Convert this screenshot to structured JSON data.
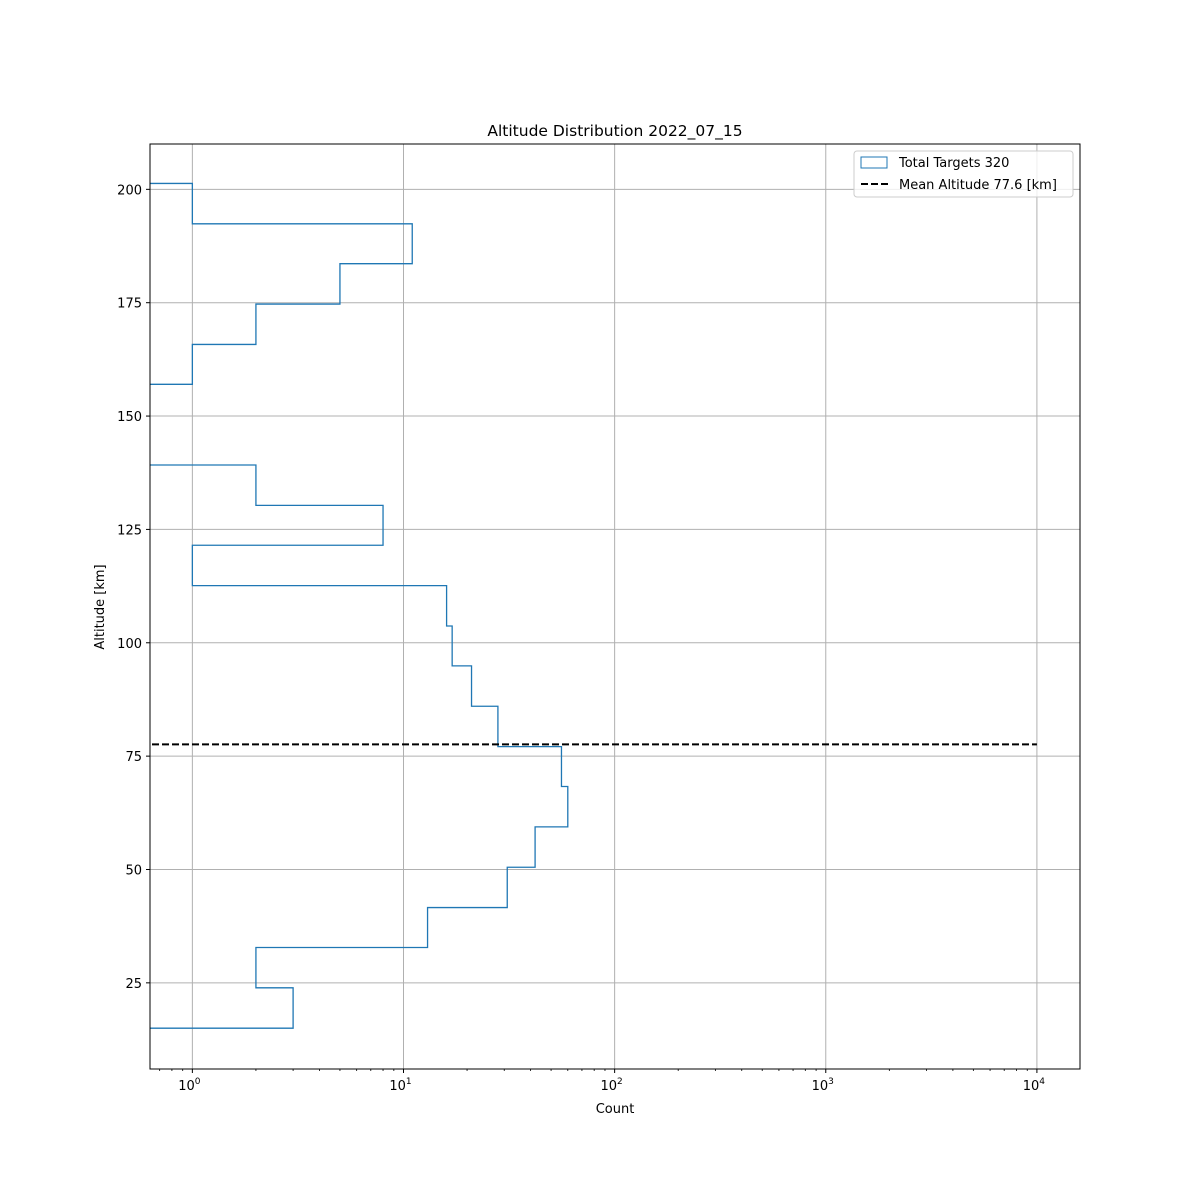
{
  "chart_data": {
    "type": "histogram",
    "orientation": "horizontal",
    "title": "Altitude Distribution 2022_07_15",
    "xlabel": "Count",
    "ylabel": "Altitude [km]",
    "x_scale": "log",
    "xlim": [
      0.63,
      16000
    ],
    "ylim": [
      6,
      210
    ],
    "x_ticks": [
      {
        "value": 1,
        "base": "10",
        "exp": "0"
      },
      {
        "value": 10,
        "base": "10",
        "exp": "1"
      },
      {
        "value": 100,
        "base": "10",
        "exp": "2"
      },
      {
        "value": 1000,
        "base": "10",
        "exp": "3"
      },
      {
        "value": 10000,
        "base": "10",
        "exp": "4"
      }
    ],
    "y_ticks": [
      25,
      50,
      75,
      100,
      125,
      150,
      175,
      200
    ],
    "grid": true,
    "legend_position": "top-right",
    "series": [
      {
        "name": "Total Targets 320",
        "style": "step",
        "color": "#1f77b4",
        "bins": [
          {
            "y_start": 15.0,
            "y_end": 23.9,
            "count": 3
          },
          {
            "y_start": 23.9,
            "y_end": 32.8,
            "count": 2
          },
          {
            "y_start": 32.8,
            "y_end": 41.6,
            "count": 13
          },
          {
            "y_start": 41.6,
            "y_end": 50.5,
            "count": 31
          },
          {
            "y_start": 50.5,
            "y_end": 59.4,
            "count": 42
          },
          {
            "y_start": 59.4,
            "y_end": 68.3,
            "count": 60
          },
          {
            "y_start": 68.3,
            "y_end": 77.1,
            "count": 56
          },
          {
            "y_start": 77.1,
            "y_end": 86.0,
            "count": 28
          },
          {
            "y_start": 86.0,
            "y_end": 94.9,
            "count": 21
          },
          {
            "y_start": 94.9,
            "y_end": 103.7,
            "count": 17
          },
          {
            "y_start": 103.7,
            "y_end": 112.6,
            "count": 16
          },
          {
            "y_start": 112.6,
            "y_end": 121.5,
            "count": 1
          },
          {
            "y_start": 121.5,
            "y_end": 130.3,
            "count": 8
          },
          {
            "y_start": 130.3,
            "y_end": 139.2,
            "count": 2
          },
          {
            "y_start": 139.2,
            "y_end": 148.1,
            "count": 0
          },
          {
            "y_start": 148.1,
            "y_end": 157.0,
            "count": 0
          },
          {
            "y_start": 157.0,
            "y_end": 165.8,
            "count": 1
          },
          {
            "y_start": 165.8,
            "y_end": 174.7,
            "count": 2
          },
          {
            "y_start": 174.7,
            "y_end": 183.6,
            "count": 5
          },
          {
            "y_start": 183.6,
            "y_end": 192.4,
            "count": 11
          },
          {
            "y_start": 192.4,
            "y_end": 201.3,
            "count": 1
          }
        ]
      },
      {
        "name": "Mean Altitude 77.6 [km]",
        "style": "dashed",
        "color": "#000000",
        "y": 77.6,
        "x_range": [
          0.63,
          10000
        ]
      }
    ]
  }
}
